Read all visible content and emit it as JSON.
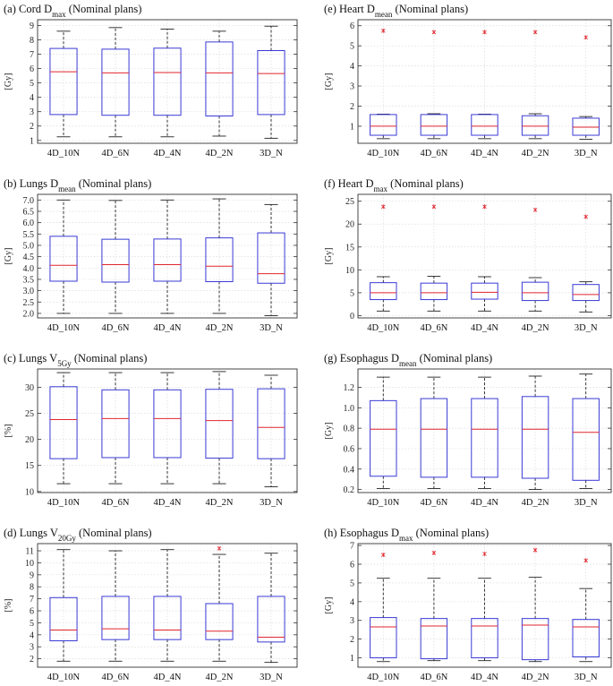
{
  "colors": {
    "box": "#3a3ad6",
    "median": "#e0262f",
    "whisker": "#222222",
    "outlier": "#e0262f",
    "grid": "#dcdcdc"
  },
  "chart_data": [
    {
      "type": "box",
      "title_pre": "(a) Cord D",
      "title_sub": "max",
      "title_post": " (Nominal plans)",
      "ylabel": "[Gy]",
      "ylim": [
        0.8,
        9.4
      ],
      "yticks": [
        1,
        2,
        3,
        4,
        5,
        6,
        7,
        8,
        9
      ],
      "ytick_labels": [
        "1",
        "2",
        "3",
        "4",
        "5",
        "6",
        "7",
        "8",
        "9"
      ],
      "categories": [
        "4D_10N",
        "4D_6N",
        "4D_4N",
        "4D_2N",
        "3D_N"
      ],
      "boxes": [
        {
          "whislo": 1.25,
          "q1": 2.8,
          "med": 5.78,
          "q3": 7.4,
          "whishi": 8.6,
          "outliers": []
        },
        {
          "whislo": 1.25,
          "q1": 2.75,
          "med": 5.7,
          "q3": 7.35,
          "whishi": 8.85,
          "outliers": []
        },
        {
          "whislo": 1.25,
          "q1": 2.75,
          "med": 5.72,
          "q3": 7.42,
          "whishi": 8.75,
          "outliers": []
        },
        {
          "whislo": 1.3,
          "q1": 2.7,
          "med": 5.7,
          "q3": 7.85,
          "whishi": 8.6,
          "outliers": []
        },
        {
          "whislo": 1.15,
          "q1": 2.8,
          "med": 5.65,
          "q3": 7.25,
          "whishi": 8.95,
          "outliers": []
        }
      ]
    },
    {
      "type": "box",
      "title_pre": "(e) Heart D",
      "title_sub": "mean",
      "title_post": " (Nominal plans)",
      "ylabel": "[Gy]",
      "ylim": [
        0.15,
        6.3
      ],
      "yticks": [
        1,
        2,
        3,
        4,
        5,
        6
      ],
      "ytick_labels": [
        "1",
        "2",
        "3",
        "4",
        "5",
        "6"
      ],
      "categories": [
        "4D_10N",
        "4D_6N",
        "4D_4N",
        "4D_2N",
        "3D_N"
      ],
      "boxes": [
        {
          "whislo": 0.38,
          "q1": 0.55,
          "med": 1.0,
          "q3": 1.58,
          "whishi": 1.6,
          "outliers": [
            5.75
          ]
        },
        {
          "whislo": 0.38,
          "q1": 0.55,
          "med": 1.0,
          "q3": 1.58,
          "whishi": 1.62,
          "outliers": [
            5.68
          ]
        },
        {
          "whislo": 0.38,
          "q1": 0.55,
          "med": 1.0,
          "q3": 1.58,
          "whishi": 1.6,
          "outliers": [
            5.68
          ]
        },
        {
          "whislo": 0.38,
          "q1": 0.55,
          "med": 1.0,
          "q3": 1.52,
          "whishi": 1.62,
          "outliers": [
            5.68
          ]
        },
        {
          "whislo": 0.35,
          "q1": 0.55,
          "med": 0.95,
          "q3": 1.4,
          "whishi": 1.48,
          "outliers": [
            5.42
          ]
        }
      ]
    },
    {
      "type": "box",
      "title_pre": "(b) Lungs D",
      "title_sub": "mean",
      "title_post": " (Nominal plans)",
      "ylabel": "[Gy]",
      "ylim": [
        1.8,
        7.25
      ],
      "yticks": [
        2,
        2.5,
        3,
        3.5,
        4,
        4.5,
        5,
        5.5,
        6,
        6.5,
        7
      ],
      "ytick_labels": [
        "2.0",
        "2.5",
        "3.0",
        "3.5",
        "4.0",
        "4.5",
        "5.0",
        "5.5",
        "6.0",
        "6.5",
        "7.0"
      ],
      "categories": [
        "4D_10N",
        "4D_6N",
        "4D_4N",
        "4D_2N",
        "3D_N"
      ],
      "boxes": [
        {
          "whislo": 2.0,
          "q1": 3.42,
          "med": 4.12,
          "q3": 5.4,
          "whishi": 7.0,
          "outliers": []
        },
        {
          "whislo": 2.0,
          "q1": 3.38,
          "med": 4.15,
          "q3": 5.27,
          "whishi": 6.98,
          "outliers": []
        },
        {
          "whislo": 2.0,
          "q1": 3.42,
          "med": 4.15,
          "q3": 5.28,
          "whishi": 7.0,
          "outliers": []
        },
        {
          "whislo": 2.0,
          "q1": 3.4,
          "med": 4.08,
          "q3": 5.33,
          "whishi": 7.05,
          "outliers": []
        },
        {
          "whislo": 1.9,
          "q1": 3.33,
          "med": 3.75,
          "q3": 5.55,
          "whishi": 6.8,
          "outliers": []
        }
      ]
    },
    {
      "type": "box",
      "title_pre": "(f) Heart D",
      "title_sub": "max",
      "title_post": " (Nominal plans)",
      "ylabel": "[Gy]",
      "ylim": [
        -0.5,
        26.5
      ],
      "yticks": [
        0,
        5,
        10,
        15,
        20,
        25
      ],
      "ytick_labels": [
        "0",
        "5",
        "10",
        "15",
        "20",
        "25"
      ],
      "categories": [
        "4D_10N",
        "4D_6N",
        "4D_4N",
        "4D_2N",
        "3D_N"
      ],
      "boxes": [
        {
          "whislo": 1.0,
          "q1": 3.5,
          "med": 5.0,
          "q3": 7.2,
          "whishi": 8.5,
          "outliers": [
            23.8
          ]
        },
        {
          "whislo": 1.0,
          "q1": 3.5,
          "med": 5.0,
          "q3": 7.1,
          "whishi": 8.6,
          "outliers": [
            23.8
          ]
        },
        {
          "whislo": 1.0,
          "q1": 3.6,
          "med": 5.1,
          "q3": 7.1,
          "whishi": 8.5,
          "outliers": [
            23.8
          ]
        },
        {
          "whislo": 1.0,
          "q1": 3.3,
          "med": 5.0,
          "q3": 7.3,
          "whishi": 8.3,
          "outliers": [
            23.1
          ]
        },
        {
          "whislo": 0.8,
          "q1": 3.3,
          "med": 4.6,
          "q3": 6.8,
          "whishi": 7.4,
          "outliers": [
            21.6
          ]
        }
      ]
    },
    {
      "type": "box",
      "title_pre": "(c) Lungs V",
      "title_sub": "5Gy",
      "title_post": " (Nominal plans)",
      "ylabel": "[%]",
      "ylim": [
        9.8,
        33.5
      ],
      "yticks": [
        10,
        15,
        20,
        25,
        30
      ],
      "ytick_labels": [
        "10",
        "15",
        "20",
        "25",
        "30"
      ],
      "categories": [
        "4D_10N",
        "4D_6N",
        "4D_4N",
        "4D_2N",
        "3D_N"
      ],
      "boxes": [
        {
          "whislo": 11.5,
          "q1": 16.3,
          "med": 23.8,
          "q3": 30.1,
          "whishi": 32.8,
          "outliers": []
        },
        {
          "whislo": 11.5,
          "q1": 16.5,
          "med": 24.0,
          "q3": 29.5,
          "whishi": 32.8,
          "outliers": []
        },
        {
          "whislo": 11.5,
          "q1": 16.5,
          "med": 24.0,
          "q3": 29.5,
          "whishi": 32.8,
          "outliers": []
        },
        {
          "whislo": 11.5,
          "q1": 16.4,
          "med": 23.6,
          "q3": 29.6,
          "whishi": 33.0,
          "outliers": []
        },
        {
          "whislo": 10.9,
          "q1": 16.3,
          "med": 22.3,
          "q3": 29.7,
          "whishi": 32.3,
          "outliers": []
        }
      ]
    },
    {
      "type": "box",
      "title_pre": "(g) Esophagus D",
      "title_sub": "mean",
      "title_post": " (Nominal plans)",
      "ylabel": "[Gy]",
      "ylim": [
        0.17,
        1.38
      ],
      "yticks": [
        0.2,
        0.4,
        0.6,
        0.8,
        1.0,
        1.2
      ],
      "ytick_labels": [
        "0.2",
        "0.4",
        "0.6",
        "0.8",
        "1.0",
        "1.2"
      ],
      "categories": [
        "4D_10N",
        "4D_6N",
        "4D_4N",
        "4D_2N",
        "3D_N"
      ],
      "boxes": [
        {
          "whislo": 0.21,
          "q1": 0.33,
          "med": 0.79,
          "q3": 1.07,
          "whishi": 1.3,
          "outliers": []
        },
        {
          "whislo": 0.21,
          "q1": 0.32,
          "med": 0.79,
          "q3": 1.09,
          "whishi": 1.3,
          "outliers": []
        },
        {
          "whislo": 0.21,
          "q1": 0.32,
          "med": 0.79,
          "q3": 1.09,
          "whishi": 1.3,
          "outliers": []
        },
        {
          "whislo": 0.2,
          "q1": 0.31,
          "med": 0.79,
          "q3": 1.11,
          "whishi": 1.31,
          "outliers": []
        },
        {
          "whislo": 0.21,
          "q1": 0.29,
          "med": 0.76,
          "q3": 1.09,
          "whishi": 1.33,
          "outliers": []
        }
      ]
    },
    {
      "type": "box",
      "title_pre": "(d) Lungs V",
      "title_sub": "20Gy",
      "title_post": " (Nominal plans)",
      "ylabel": "[%]",
      "ylim": [
        1.3,
        11.6
      ],
      "yticks": [
        2,
        3,
        4,
        5,
        6,
        7,
        8,
        9,
        10,
        11
      ],
      "ytick_labels": [
        "2",
        "3",
        "4",
        "5",
        "6",
        "7",
        "8",
        "9",
        "10",
        "11"
      ],
      "categories": [
        "4D_10N",
        "4D_6N",
        "4D_4N",
        "4D_2N",
        "3D_N"
      ],
      "boxes": [
        {
          "whislo": 1.8,
          "q1": 3.5,
          "med": 4.4,
          "q3": 7.1,
          "whishi": 11.1,
          "outliers": []
        },
        {
          "whislo": 1.8,
          "q1": 3.6,
          "med": 4.5,
          "q3": 7.2,
          "whishi": 11.0,
          "outliers": []
        },
        {
          "whislo": 1.8,
          "q1": 3.6,
          "med": 4.4,
          "q3": 7.2,
          "whishi": 11.1,
          "outliers": []
        },
        {
          "whislo": 1.8,
          "q1": 3.6,
          "med": 4.3,
          "q3": 6.6,
          "whishi": 10.7,
          "outliers": [
            11.2
          ]
        },
        {
          "whislo": 1.7,
          "q1": 3.4,
          "med": 3.8,
          "q3": 7.2,
          "whishi": 10.8,
          "outliers": []
        }
      ]
    },
    {
      "type": "box",
      "title_pre": "(h) Esophagus D",
      "title_sub": "max",
      "title_post": " (Nominal plans)",
      "ylabel": "[Gy]",
      "ylim": [
        0.5,
        7.1
      ],
      "yticks": [
        1,
        2,
        3,
        4,
        5,
        6,
        7
      ],
      "ytick_labels": [
        "1",
        "2",
        "3",
        "4",
        "5",
        "6",
        "7"
      ],
      "categories": [
        "4D_10N",
        "4D_6N",
        "4D_4N",
        "4D_2N",
        "3D_N"
      ],
      "boxes": [
        {
          "whislo": 0.8,
          "q1": 1.0,
          "med": 2.65,
          "q3": 3.15,
          "whishi": 5.25,
          "outliers": [
            6.5
          ]
        },
        {
          "whislo": 0.85,
          "q1": 0.95,
          "med": 2.7,
          "q3": 3.1,
          "whishi": 5.25,
          "outliers": [
            6.6
          ]
        },
        {
          "whislo": 0.85,
          "q1": 1.0,
          "med": 2.7,
          "q3": 3.1,
          "whishi": 5.25,
          "outliers": [
            6.55
          ]
        },
        {
          "whislo": 0.8,
          "q1": 0.9,
          "med": 2.75,
          "q3": 3.1,
          "whishi": 5.3,
          "outliers": [
            6.75
          ]
        },
        {
          "whislo": 0.8,
          "q1": 1.05,
          "med": 2.65,
          "q3": 3.05,
          "whishi": 4.7,
          "outliers": [
            6.2
          ]
        }
      ]
    }
  ]
}
